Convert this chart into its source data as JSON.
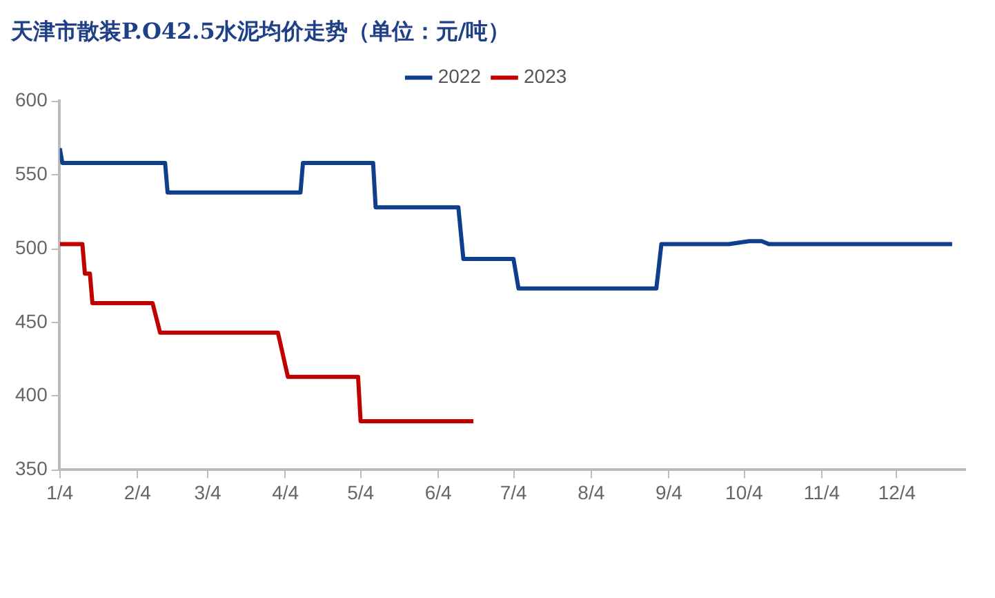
{
  "chart_data": {
    "type": "line",
    "title": "天津市散装P.O42.5水泥均价走势（单位：元/吨）",
    "xlim": [
      "--01-04",
      "--12-31"
    ],
    "xticks": [
      {
        "value": "--01-04",
        "label": "1/4"
      },
      {
        "value": "--02-04",
        "label": "2/4"
      },
      {
        "value": "--03-04",
        "label": "3/4"
      },
      {
        "value": "--04-04",
        "label": "4/4"
      },
      {
        "value": "--05-04",
        "label": "5/4"
      },
      {
        "value": "--06-04",
        "label": "6/4"
      },
      {
        "value": "--07-04",
        "label": "7/4"
      },
      {
        "value": "--08-04",
        "label": "8/4"
      },
      {
        "value": "--09-04",
        "label": "9/4"
      },
      {
        "value": "--10-04",
        "label": "10/4"
      },
      {
        "value": "--11-04",
        "label": "11/4"
      },
      {
        "value": "--12-04",
        "label": "12/4"
      }
    ],
    "ylim": [
      350,
      600
    ],
    "yticks": [
      350,
      400,
      450,
      500,
      550,
      600
    ],
    "grid": false,
    "legend": "top",
    "marker": "none",
    "line_style": "solid",
    "series": [
      {
        "name": "2022",
        "color": "#0f3f8c",
        "x": [
          "--01-04",
          "--01-05",
          "--02-15",
          "--02-16",
          "--04-10",
          "--04-11",
          "--05-09",
          "--05-10",
          "--06-12",
          "--06-14",
          "--07-04",
          "--07-06",
          "--08-30",
          "--09-01",
          "--09-28",
          "--10-06",
          "--10-11",
          "--10-14",
          "--12-26"
        ],
        "values": [
          568,
          558,
          558,
          538,
          538,
          558,
          558,
          528,
          528,
          493,
          493,
          473,
          473,
          503,
          503,
          505,
          505,
          503,
          503
        ]
      },
      {
        "name": "2023",
        "color": "#c00000",
        "x": [
          "--01-04",
          "--01-13",
          "--01-14",
          "--01-16",
          "--01-17",
          "--02-10",
          "--02-13",
          "--04-01",
          "--04-05",
          "--05-03",
          "--05-04",
          "--06-18"
        ],
        "values": [
          503,
          503,
          483,
          483,
          463,
          463,
          443,
          443,
          413,
          413,
          383,
          383
        ]
      }
    ]
  }
}
